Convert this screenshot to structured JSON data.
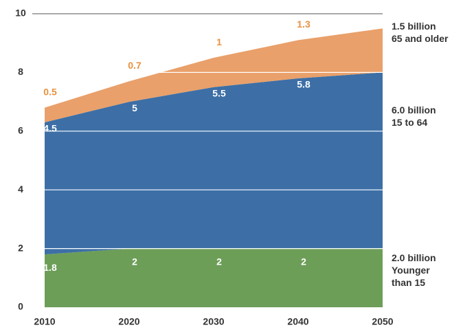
{
  "chart_data": {
    "type": "stacked_area",
    "x": [
      2010,
      2020,
      2030,
      2040,
      2050
    ],
    "xlim": [
      2010,
      2050
    ],
    "xticks": [
      2010,
      2020,
      2030,
      2040,
      2050
    ],
    "ylim": [
      0,
      10
    ],
    "yticks": [
      0,
      2,
      4,
      6,
      8,
      10
    ],
    "grid": true,
    "series": [
      {
        "name": "Younger than 15",
        "total_label": "2.0 billion",
        "color": "#6d9e58",
        "label_color": "#ffffff",
        "values": [
          1.8,
          2.0,
          2.0,
          2.0,
          2.0
        ]
      },
      {
        "name": "15 to 64",
        "total_label": "6.0 billion",
        "color": "#3d6fa6",
        "label_color": "#ffffff",
        "values": [
          4.5,
          5.0,
          5.5,
          5.8,
          6.0
        ]
      },
      {
        "name": "65 and older",
        "total_label": "1.5 billion",
        "color": "#e9a06a",
        "label_color": "#e8913f",
        "values": [
          0.5,
          0.7,
          1.0,
          1.3,
          1.5
        ]
      }
    ]
  }
}
